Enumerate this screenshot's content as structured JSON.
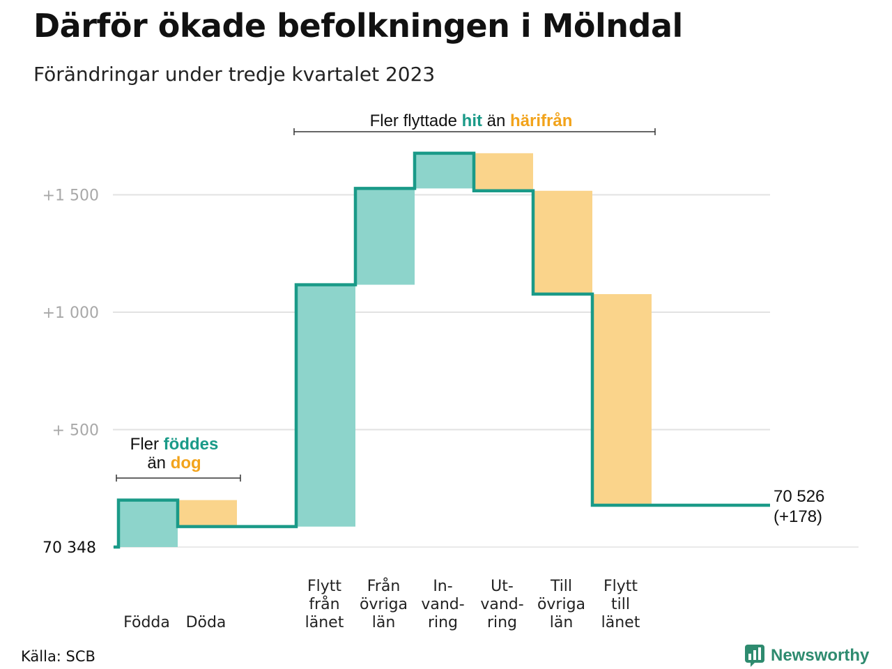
{
  "title": "Därför ökade befolkningen i Mölndal",
  "subtitle": "Förändringar under tredje kvartalet 2023",
  "source": "Källa: SCB",
  "logo": {
    "name": "Newsworthy",
    "icon": "bar-chart-speech-bubble-icon"
  },
  "colors": {
    "increase": "#8dd4cb",
    "decrease": "#fad48b",
    "line": "#1a9a88",
    "grid": "#e2e2e2",
    "accent_teal": "#1a9a88",
    "accent_orange": "#f2a31b"
  },
  "annotations": {
    "births": {
      "line1_pre": "Fler",
      "line1_hl": "föddes",
      "line2_pre": "än",
      "line2_hl": "dog"
    },
    "migration": {
      "pre": "Fler flyttade",
      "hl1": "hit",
      "mid": "än",
      "hl2": "härifrån"
    }
  },
  "end_label": {
    "value": "70 526",
    "change": "(+178)"
  },
  "chart_data": {
    "type": "waterfall",
    "baseline": 70348,
    "baseline_label": "70  348",
    "yticks": [
      {
        "value": 500,
        "label": "+  500"
      },
      {
        "value": 1000,
        "label": "+1   000"
      },
      {
        "value": 1500,
        "label": "+1   500"
      }
    ],
    "ylim": [
      0,
      1700
    ],
    "steps": [
      {
        "category": [
          "Födda"
        ],
        "change": 200
      },
      {
        "category": [
          "Döda"
        ],
        "change": -113
      },
      {
        "category": [],
        "change": 0
      },
      {
        "category": [
          "Flytt",
          "från",
          "länet"
        ],
        "change": 1030
      },
      {
        "category": [
          "Från",
          "övriga",
          "län"
        ],
        "change": 410
      },
      {
        "category": [
          "In-",
          "vand-",
          "ring"
        ],
        "change": 150
      },
      {
        "category": [
          "Ut-",
          "vand-",
          "ring"
        ],
        "change": -160
      },
      {
        "category": [
          "Till",
          "övriga",
          "län"
        ],
        "change": -440
      },
      {
        "category": [
          "Flytt",
          "till",
          "länet"
        ],
        "change": -899
      },
      {
        "category": [],
        "change": 0
      },
      {
        "category": [],
        "change": 0
      }
    ],
    "final": 70526,
    "total_change": 178,
    "grid": true
  }
}
